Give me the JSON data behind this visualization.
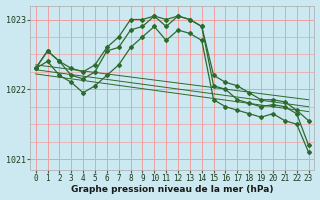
{
  "hours": [
    0,
    1,
    2,
    3,
    4,
    5,
    6,
    7,
    8,
    9,
    10,
    11,
    12,
    13,
    14,
    15,
    16,
    17,
    18,
    19,
    20,
    21,
    22,
    23
  ],
  "line_main": [
    1022.3,
    1022.55,
    1022.4,
    1022.2,
    1022.15,
    1022.25,
    1022.55,
    1022.6,
    1022.85,
    1022.9,
    1023.05,
    1022.9,
    1023.05,
    1023.0,
    1022.9,
    1022.05,
    1022.0,
    1021.85,
    1021.8,
    1021.75,
    1021.78,
    1021.75,
    1021.65,
    1021.2
  ],
  "line_high": [
    1022.3,
    1022.55,
    1022.4,
    1022.3,
    1022.25,
    1022.35,
    1022.6,
    1022.75,
    1023.0,
    1023.0,
    1023.05,
    1023.0,
    1023.05,
    1023.0,
    1022.9,
    1022.2,
    1022.1,
    1022.05,
    1021.95,
    1021.85,
    1021.85,
    1021.82,
    1021.7,
    1021.55
  ],
  "line_low": [
    1022.3,
    1022.4,
    1022.2,
    1022.1,
    1021.95,
    1022.05,
    1022.2,
    1022.35,
    1022.6,
    1022.75,
    1022.9,
    1022.7,
    1022.85,
    1022.8,
    1022.7,
    1021.85,
    1021.75,
    1021.7,
    1021.65,
    1021.6,
    1021.65,
    1021.55,
    1021.5,
    1021.1
  ],
  "trend_lines": [
    [
      [
        0,
        23
      ],
      [
        1022.35,
        1021.85
      ]
    ],
    [
      [
        0,
        23
      ],
      [
        1022.28,
        1021.75
      ]
    ],
    [
      [
        0,
        23
      ],
      [
        1022.22,
        1021.68
      ]
    ]
  ],
  "line_color": "#2d6a2d",
  "bg_color": "#cce8f0",
  "grid_color": "#f0a0a0",
  "xlabel": "Graphe pression niveau de la mer (hPa)",
  "ylim": [
    1020.85,
    1023.2
  ],
  "xlim": [
    -0.5,
    23.5
  ],
  "yticks": [
    1021,
    1022,
    1023
  ],
  "xticks": [
    0,
    1,
    2,
    3,
    4,
    5,
    6,
    7,
    8,
    9,
    10,
    11,
    12,
    13,
    14,
    15,
    16,
    17,
    18,
    19,
    20,
    21,
    22,
    23
  ],
  "tick_fontsize": 5.5,
  "xlabel_fontsize": 6.5
}
